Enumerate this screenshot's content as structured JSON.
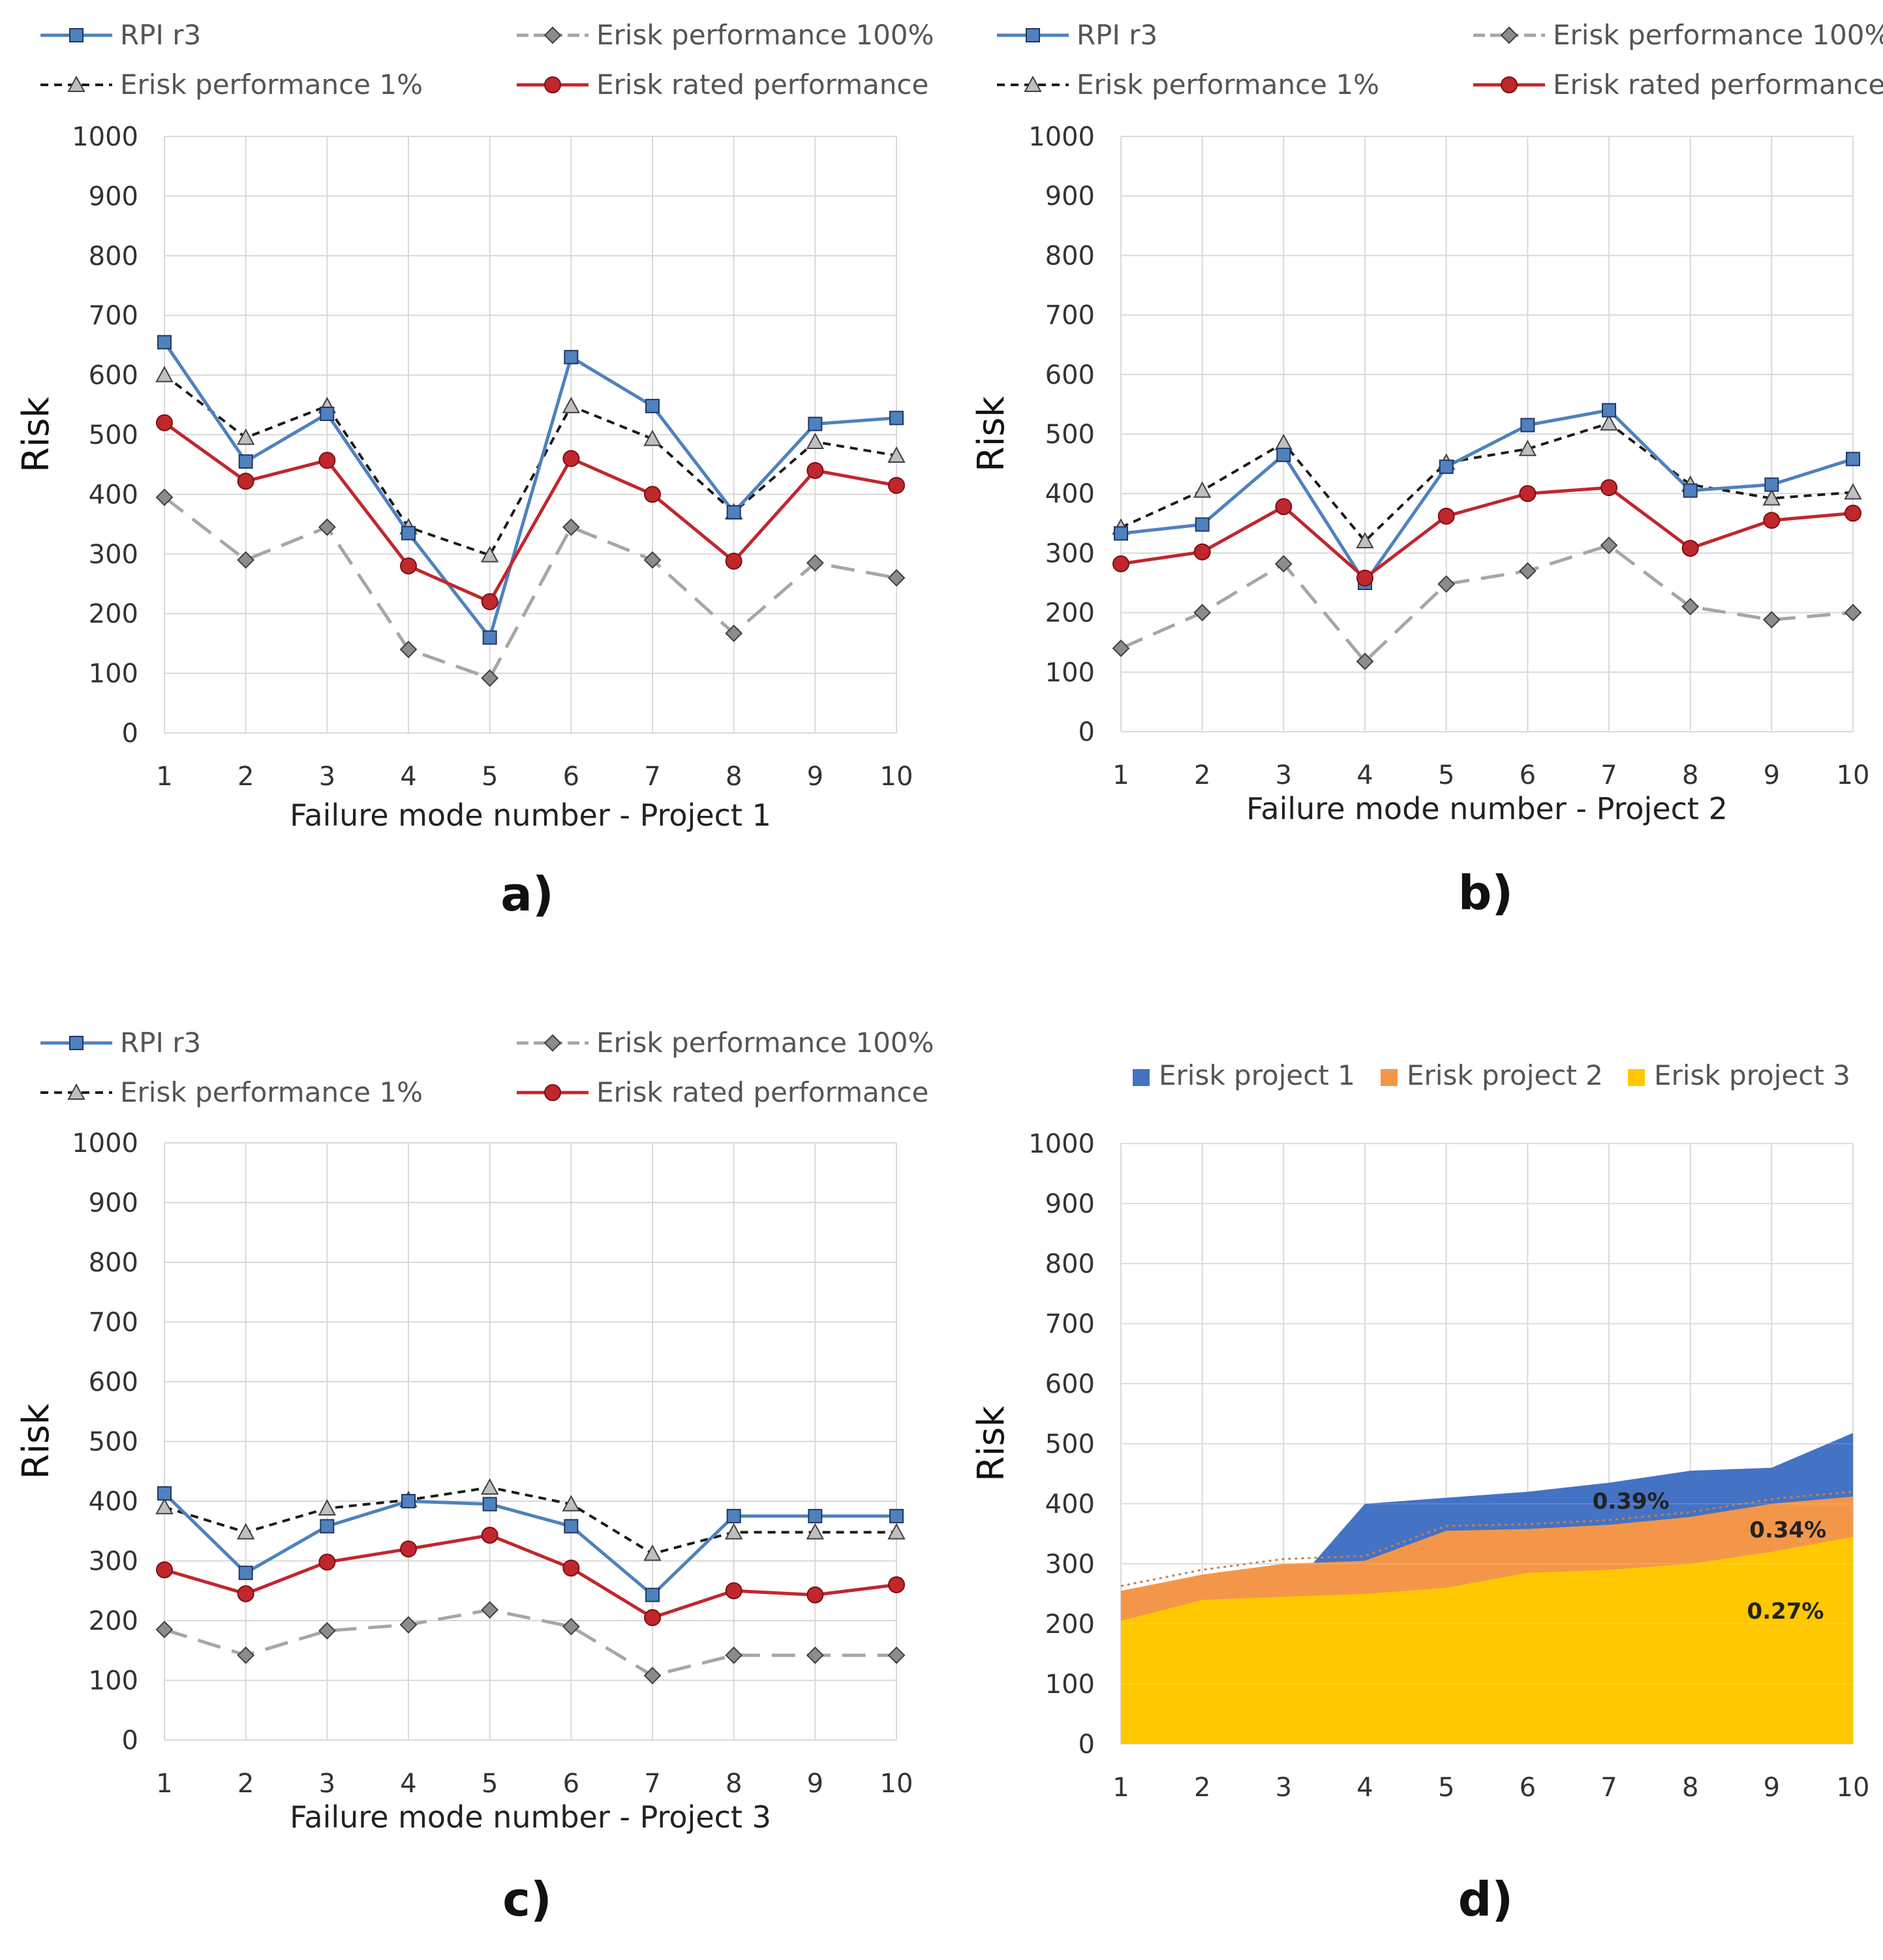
{
  "colors": {
    "rpi": "#4f81bd",
    "rpi_marker": "#4f81bd",
    "perf100": "#a6a6a6",
    "perf100_marker": "#8c8c8c",
    "perf1": "#1a1a1a",
    "perf1_marker": "#bfbfbf",
    "rated": "#c0272d",
    "grid": "#d9d9d9",
    "project1": "#4472c4",
    "project2": "#f4964a",
    "project3": "#ffc800"
  },
  "chart_data": [
    {
      "id": "a",
      "type": "line",
      "panel_label": "a)",
      "xlabel": "Failure mode number - Project 1",
      "ylabel": "Risk",
      "ylim": [
        0,
        1000
      ],
      "yticks": [
        0,
        100,
        200,
        300,
        400,
        500,
        600,
        700,
        800,
        900,
        1000
      ],
      "categories": [
        1,
        2,
        3,
        4,
        5,
        6,
        7,
        8,
        9,
        10
      ],
      "legend": [
        "RPI r3",
        "Erisk performance 100%",
        "Erisk performance 1%",
        "Erisk rated performance"
      ],
      "series": [
        {
          "name": "RPI r3",
          "key": "rpi",
          "values": [
            655,
            455,
            535,
            335,
            160,
            630,
            548,
            370,
            518,
            528
          ]
        },
        {
          "name": "Erisk performance 100%",
          "key": "perf100",
          "values": [
            395,
            290,
            345,
            140,
            92,
            345,
            290,
            167,
            285,
            260
          ]
        },
        {
          "name": "Erisk performance 1%",
          "key": "perf1",
          "values": [
            600,
            495,
            548,
            345,
            298,
            548,
            493,
            370,
            488,
            465
          ]
        },
        {
          "name": "Erisk rated performance",
          "key": "rated",
          "values": [
            520,
            422,
            457,
            280,
            220,
            460,
            400,
            288,
            440,
            415
          ]
        }
      ]
    },
    {
      "id": "b",
      "type": "line",
      "panel_label": "b)",
      "xlabel": "Failure mode number - Project 2",
      "ylabel": "Risk",
      "ylim": [
        0,
        1000
      ],
      "yticks": [
        0,
        100,
        200,
        300,
        400,
        500,
        600,
        700,
        800,
        900,
        1000
      ],
      "categories": [
        1,
        2,
        3,
        4,
        5,
        6,
        7,
        8,
        9,
        10
      ],
      "legend": [
        "RPI r3",
        "Erisk performance 100%",
        "Erisk performance 1%",
        "Erisk rated performance"
      ],
      "series": [
        {
          "name": "RPI r3",
          "key": "rpi",
          "values": [
            333,
            348,
            465,
            250,
            445,
            515,
            540,
            405,
            415,
            458
          ]
        },
        {
          "name": "Erisk performance 100%",
          "key": "perf100",
          "values": [
            140,
            200,
            282,
            118,
            248,
            270,
            313,
            210,
            188,
            200
          ]
        },
        {
          "name": "Erisk performance 1%",
          "key": "perf1",
          "values": [
            343,
            405,
            485,
            320,
            452,
            475,
            518,
            415,
            392,
            402
          ]
        },
        {
          "name": "Erisk rated performance",
          "key": "rated",
          "values": [
            282,
            302,
            378,
            258,
            362,
            400,
            410,
            308,
            355,
            367
          ]
        }
      ]
    },
    {
      "id": "c",
      "type": "line",
      "panel_label": "c)",
      "xlabel": "Failure mode number - Project 3",
      "ylabel": "Risk",
      "ylim": [
        0,
        1000
      ],
      "yticks": [
        0,
        100,
        200,
        300,
        400,
        500,
        600,
        700,
        800,
        900,
        1000
      ],
      "categories": [
        1,
        2,
        3,
        4,
        5,
        6,
        7,
        8,
        9,
        10
      ],
      "legend": [
        "RPI r3",
        "Erisk performance 100%",
        "Erisk performance 1%",
        "Erisk rated performance"
      ],
      "series": [
        {
          "name": "RPI r3",
          "key": "rpi",
          "values": [
            413,
            280,
            358,
            400,
            395,
            358,
            243,
            375,
            375,
            375
          ]
        },
        {
          "name": "Erisk performance 100%",
          "key": "perf100",
          "values": [
            185,
            142,
            183,
            193,
            218,
            190,
            108,
            142,
            142,
            142
          ]
        },
        {
          "name": "Erisk performance 1%",
          "key": "perf1",
          "values": [
            390,
            348,
            388,
            402,
            423,
            395,
            312,
            348,
            348,
            348
          ]
        },
        {
          "name": "Erisk rated performance",
          "key": "rated",
          "values": [
            285,
            245,
            298,
            320,
            343,
            288,
            205,
            250,
            243,
            260
          ]
        }
      ]
    },
    {
      "id": "d",
      "type": "area",
      "panel_label": "d)",
      "xlabel": "",
      "ylabel": "Risk",
      "ylim": [
        0,
        1000
      ],
      "yticks": [
        0,
        100,
        200,
        300,
        400,
        500,
        600,
        700,
        800,
        900,
        1000
      ],
      "categories": [
        1,
        2,
        3,
        4,
        5,
        6,
        7,
        8,
        9,
        10
      ],
      "legend": [
        "Erisk project 1",
        "Erisk project 2",
        "Erisk project 3"
      ],
      "series": [
        {
          "name": "Erisk project 1",
          "key": "project1",
          "values": [
            200,
            240,
            245,
            400,
            410,
            420,
            435,
            455,
            460,
            518
          ]
        },
        {
          "name": "Erisk project 2",
          "key": "project2",
          "values": [
            255,
            282,
            300,
            305,
            355,
            358,
            365,
            378,
            400,
            412
          ]
        },
        {
          "name": "Erisk project 3",
          "key": "project3",
          "values": [
            205,
            240,
            245,
            250,
            260,
            285,
            290,
            300,
            320,
            345
          ]
        }
      ],
      "annotations": [
        {
          "text": "0.39%",
          "x": 7.27,
          "y": 405
        },
        {
          "text": "0.34%",
          "x": 9.2,
          "y": 357
        },
        {
          "text": "0.27%",
          "x": 9.17,
          "y": 222
        }
      ]
    }
  ]
}
